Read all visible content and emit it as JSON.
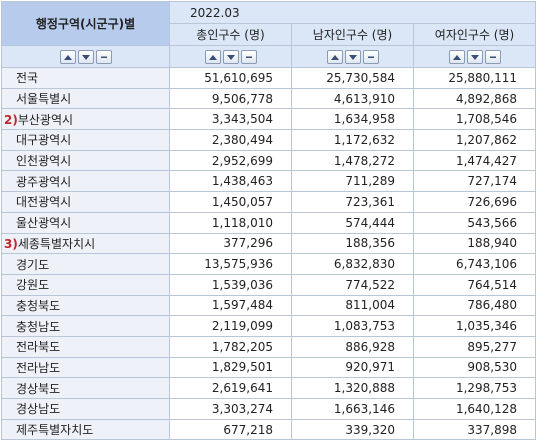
{
  "header": {
    "corner_label": "행정구역(시군구)별",
    "period": "2022.03",
    "columns": [
      "총인구수 (명)",
      "남자인구수 (명)",
      "여자인구수 (명)"
    ]
  },
  "rows": [
    {
      "region": "전국",
      "mark": "",
      "total": "51,610,695",
      "male": "25,730,584",
      "female": "25,880,111"
    },
    {
      "region": "서울특별시",
      "mark": "",
      "total": "9,506,778",
      "male": "4,613,910",
      "female": "4,892,868"
    },
    {
      "region": "부산광역시",
      "mark": "2)",
      "total": "3,343,504",
      "male": "1,634,958",
      "female": "1,708,546"
    },
    {
      "region": "대구광역시",
      "mark": "",
      "total": "2,380,494",
      "male": "1,172,632",
      "female": "1,207,862"
    },
    {
      "region": "인천광역시",
      "mark": "",
      "total": "2,952,699",
      "male": "1,478,272",
      "female": "1,474,427"
    },
    {
      "region": "광주광역시",
      "mark": "",
      "total": "1,438,463",
      "male": "711,289",
      "female": "727,174"
    },
    {
      "region": "대전광역시",
      "mark": "",
      "total": "1,450,057",
      "male": "723,361",
      "female": "726,696"
    },
    {
      "region": "울산광역시",
      "mark": "",
      "total": "1,118,010",
      "male": "574,444",
      "female": "543,566"
    },
    {
      "region": "세종특별자치시",
      "mark": "3)",
      "total": "377,296",
      "male": "188,356",
      "female": "188,940"
    },
    {
      "region": "경기도",
      "mark": "",
      "total": "13,575,936",
      "male": "6,832,830",
      "female": "6,743,106"
    },
    {
      "region": "강원도",
      "mark": "",
      "total": "1,539,036",
      "male": "774,522",
      "female": "764,514"
    },
    {
      "region": "충청북도",
      "mark": "",
      "total": "1,597,484",
      "male": "811,004",
      "female": "786,480"
    },
    {
      "region": "충청남도",
      "mark": "",
      "total": "2,119,099",
      "male": "1,083,753",
      "female": "1,035,346"
    },
    {
      "region": "전라북도",
      "mark": "",
      "total": "1,782,205",
      "male": "886,928",
      "female": "895,277"
    },
    {
      "region": "전라남도",
      "mark": "",
      "total": "1,829,501",
      "male": "920,971",
      "female": "908,530"
    },
    {
      "region": "경상북도",
      "mark": "",
      "total": "2,619,641",
      "male": "1,320,888",
      "female": "1,298,753"
    },
    {
      "region": "경상남도",
      "mark": "",
      "total": "3,303,274",
      "male": "1,663,146",
      "female": "1,640,128"
    },
    {
      "region": "제주특별자치도",
      "mark": "",
      "total": "677,218",
      "male": "339,320",
      "female": "337,898"
    }
  ],
  "colors": {
    "header_bg": "#dbe6f6",
    "corner_bg": "#b7cbed",
    "mark": "#c1272d",
    "border": "#b9c6d8"
  }
}
